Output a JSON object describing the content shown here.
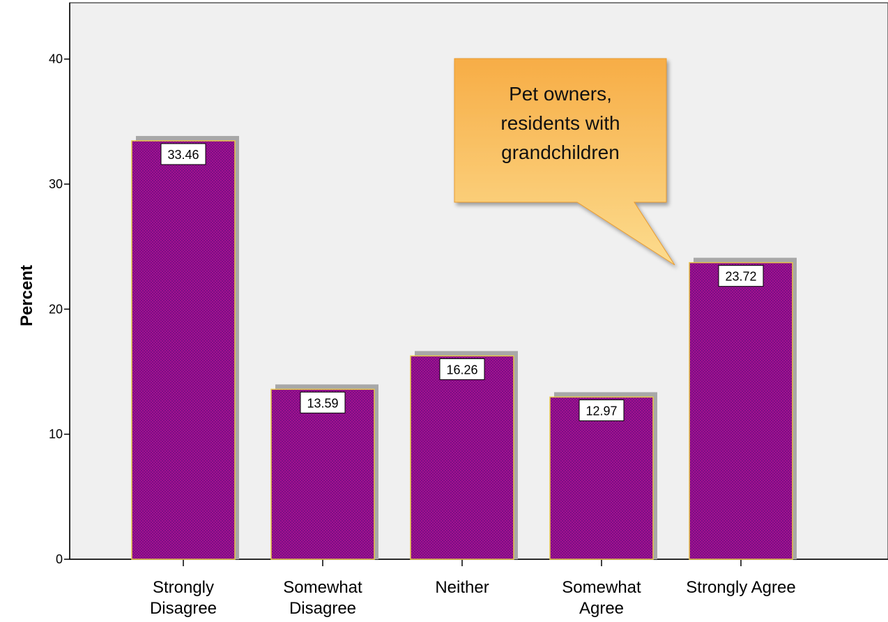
{
  "chart_data": {
    "type": "bar",
    "categories": [
      [
        "Strongly",
        "Disagree"
      ],
      [
        "Somewhat",
        "Disagree"
      ],
      [
        "Neither"
      ],
      [
        "Somewhat",
        "Agree"
      ],
      [
        "Strongly Agree"
      ]
    ],
    "values": [
      33.46,
      13.59,
      16.26,
      12.97,
      23.72
    ],
    "data_labels": [
      "33.46",
      "13.59",
      "16.26",
      "12.97",
      "23.72"
    ],
    "ylabel": "Percent",
    "xlabel": "",
    "ylim": [
      0,
      44.5
    ],
    "yticks": [
      0,
      10,
      20,
      30,
      40
    ],
    "grid": false,
    "annotation": {
      "lines": [
        "Pet owners,",
        "residents with",
        "grandchildren"
      ],
      "points_to_category": 4
    },
    "colors": {
      "bar": "#a3128f",
      "bar_pattern": "#7a0d85",
      "bar_edge": "#e6c64a",
      "shadow": "#a8a8a8",
      "plot_bg": "#f0f0f0",
      "callout_top": "#f7ad46",
      "callout_bottom": "#fcdc8e"
    }
  }
}
